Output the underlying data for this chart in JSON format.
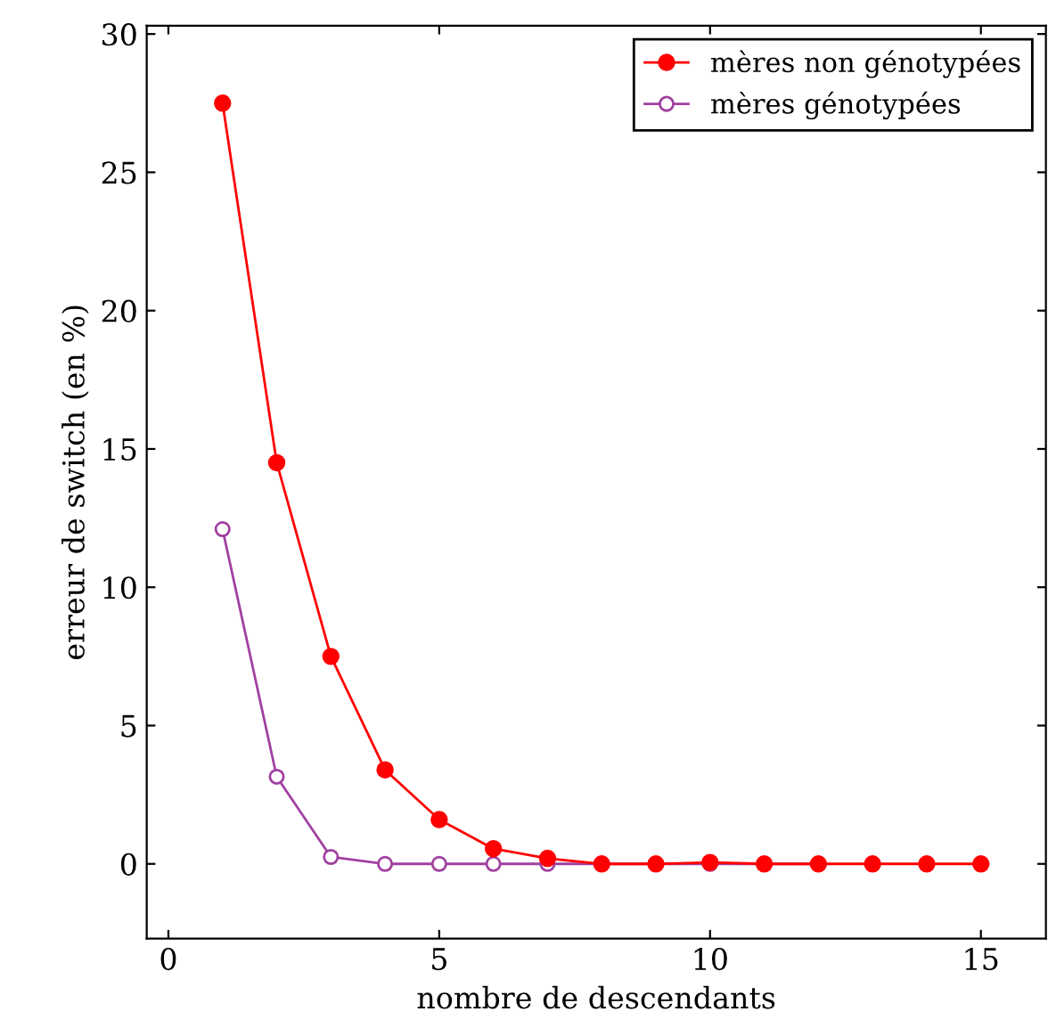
{
  "chart_data": {
    "type": "line",
    "xlabel": "nombre de descendants",
    "ylabel": "erreur de switch (en %)",
    "x": [
      1,
      2,
      3,
      4,
      5,
      6,
      7,
      8,
      9,
      10,
      11,
      12,
      13,
      14,
      15
    ],
    "xlim": [
      -0.4,
      16.2
    ],
    "ylim": [
      -2.7,
      30.3
    ],
    "xticks": [
      0,
      5,
      10,
      15
    ],
    "yticks": [
      0,
      5,
      10,
      15,
      20,
      25,
      30
    ],
    "legend": "top right",
    "marker": "circle",
    "grid": false,
    "series": [
      {
        "name": "mères non génotypées",
        "color": "#ff0000",
        "values": [
          27.5,
          14.5,
          7.5,
          3.4,
          1.6,
          0.55,
          0.2,
          0,
          0,
          0.05,
          0,
          0,
          0,
          0,
          0
        ]
      },
      {
        "name": "mères génotypées",
        "color": "#a040a0",
        "values": [
          12.1,
          3.15,
          0.25,
          0,
          0,
          0,
          0,
          0,
          0,
          0,
          0,
          0,
          null,
          null,
          null
        ]
      }
    ]
  }
}
